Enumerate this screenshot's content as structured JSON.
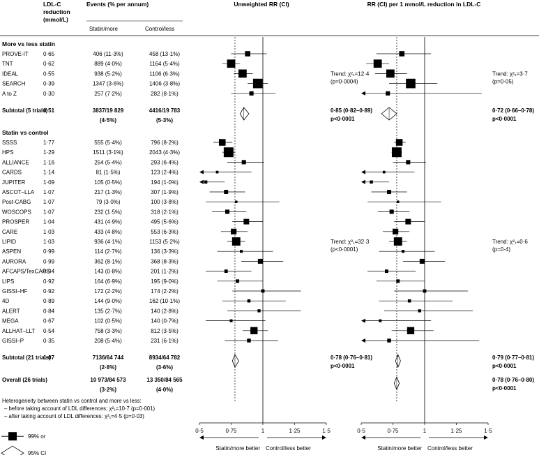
{
  "chart_data": {
    "type": "forest",
    "headers": {
      "ldl": "LDL-C reduction (mmol/L)",
      "events": "Events (% per annum)",
      "statin": "Statin/more",
      "control": "Control/less",
      "panel1": "Unweighted RR (CI)",
      "panel2": "RR (CI) per 1 mmol/L reduction in LDL-C"
    },
    "groups": [
      {
        "title": "More vs less statin",
        "trials": [
          {
            "name": "PROVE-IT",
            "ldl": "0·65",
            "statin": "406 (11·3%)",
            "control": "458 (13·1%)",
            "rr": [
              0.88,
              0.75,
              1.03
            ],
            "rr1": [
              0.82,
              0.62,
              1.05
            ]
          },
          {
            "name": "TNT",
            "ldl": "0·62",
            "statin": "889 (4·0%)",
            "control": "1164 (5·4%)",
            "rr": [
              0.75,
              0.68,
              0.82
            ],
            "rr1": [
              0.63,
              0.54,
              0.72
            ]
          },
          {
            "name": "IDEAL",
            "ldl": "0·55",
            "statin": "938 (5·2%)",
            "control": "1106 (6·3%)",
            "rr": [
              0.84,
              0.77,
              0.92
            ],
            "rr1": [
              0.73,
              0.61,
              0.86
            ]
          },
          {
            "name": "SEARCH",
            "ldl": "0·39",
            "statin": "1347 (3·6%)",
            "control": "1406 (3·8%)",
            "rr": [
              0.96,
              0.88,
              1.04
            ],
            "rr1": [
              0.89,
              0.72,
              1.1
            ]
          },
          {
            "name": "A to Z",
            "ldl": "0·30",
            "statin": "257 (7·2%)",
            "control": "282 (8·1%)",
            "rr": [
              0.91,
              0.75,
              1.1
            ],
            "rr1": [
              0.71,
              0.35,
              1.45
            ]
          }
        ],
        "trend1": [
          "Trend: χ²₁=12·4",
          "(p=0·0004)"
        ],
        "trend2": [
          "Trend: χ²₁=3·7",
          "(p=0·05)"
        ],
        "subtotal": {
          "name": "Subtotal (5 trials)",
          "ldl": "0·51",
          "statin": [
            "3837/19 829",
            "(4·5%)"
          ],
          "control": [
            "4416/19 783",
            "(5·3%)"
          ],
          "rr": [
            0.85,
            0.82,
            0.89
          ],
          "rr_text": [
            "0·85 (0·82–0·89)",
            "p<0·0001"
          ],
          "rr1": [
            0.72,
            0.66,
            0.78
          ],
          "rr1_text": [
            "0·72 (0·66–0·78)",
            "p<0·0001"
          ]
        }
      },
      {
        "title": "Statin vs control",
        "trials": [
          {
            "name": "SSSS",
            "ldl": "1·77",
            "statin": "555 (5·4%)",
            "control": "796 (8·2%)",
            "rr": [
              0.68,
              0.61,
              0.76
            ],
            "rr1": [
              0.8,
              0.76,
              0.85
            ]
          },
          {
            "name": "HPS",
            "ldl": "1·29",
            "statin": "1511 (3·1%)",
            "control": "2043 (4·3%)",
            "rr": [
              0.73,
              0.68,
              0.78
            ],
            "rr1": [
              0.78,
              0.74,
              0.82
            ]
          },
          {
            "name": "ALLIANCE",
            "ldl": "1·16",
            "statin": "254 (5·4%)",
            "control": "293 (6·4%)",
            "rr": [
              0.85,
              0.72,
              1.01
            ],
            "rr1": [
              0.87,
              0.75,
              1.01
            ]
          },
          {
            "name": "CARDS",
            "ldl": "1·14",
            "statin": "81 (1·5%)",
            "control": "123 (2·4%)",
            "rr": [
              0.64,
              0.45,
              0.91
            ],
            "rr1": [
              0.68,
              0.45,
              0.92
            ]
          },
          {
            "name": "JUPITER",
            "ldl": "1·09",
            "statin": "105 (0·5%)",
            "control": "194 (1·0%)",
            "rr": [
              0.55,
              0.45,
              0.7
            ],
            "rr1": [
              0.58,
              0.45,
              0.72
            ]
          },
          {
            "name": "ASCOT–LLA",
            "ldl": "1·07",
            "statin": "217 (1·3%)",
            "control": "307 (1·9%)",
            "rr": [
              0.71,
              0.58,
              0.86
            ],
            "rr1": [
              0.72,
              0.58,
              0.86
            ]
          },
          {
            "name": "Post-CABG",
            "ldl": "1·07",
            "statin": "79 (3·0%)",
            "control": "100 (3·8%)",
            "rr": [
              0.79,
              0.55,
              1.13
            ],
            "rr1": [
              0.79,
              0.55,
              1.13
            ]
          },
          {
            "name": "WOSCOPS",
            "ldl": "1·07",
            "statin": "232 (1·5%)",
            "control": "318 (2·1%)",
            "rr": [
              0.72,
              0.6,
              0.87
            ],
            "rr1": [
              0.74,
              0.63,
              0.88
            ]
          },
          {
            "name": "PROSPER",
            "ldl": "1·04",
            "statin": "431 (4·9%)",
            "control": "495 (5·6%)",
            "rr": [
              0.87,
              0.76,
              1.0
            ],
            "rr1": [
              0.87,
              0.76,
              1.0
            ]
          },
          {
            "name": "CARE",
            "ldl": "1·03",
            "statin": "433 (4·8%)",
            "control": "553 (6·3%)",
            "rr": [
              0.77,
              0.67,
              0.88
            ],
            "rr1": [
              0.77,
              0.67,
              0.88
            ]
          },
          {
            "name": "LIPID",
            "ldl": "1·03",
            "statin": "936 (4·1%)",
            "control": "1153 (5·2%)",
            "rr": [
              0.79,
              0.72,
              0.86
            ],
            "rr1": [
              0.79,
              0.72,
              0.86
            ]
          },
          {
            "name": "ASPEN",
            "ldl": "0·99",
            "statin": "114 (2·7%)",
            "control": "136 (3·3%)",
            "rr": [
              0.83,
              0.64,
              1.08
            ],
            "rr1": [
              0.83,
              0.64,
              1.08
            ]
          },
          {
            "name": "AURORA",
            "ldl": "0·99",
            "statin": "362 (8·1%)",
            "control": "368 (8·3%)",
            "rr": [
              0.98,
              0.83,
              1.16
            ],
            "rr1": [
              0.98,
              0.83,
              1.16
            ]
          },
          {
            "name": "AFCAPS/TexCAPS",
            "ldl": "0·94",
            "statin": "143 (0·8%)",
            "control": "201 (1·2%)",
            "rr": [
              0.71,
              0.55,
              0.91
            ],
            "rr1": [
              0.7,
              0.55,
              0.93
            ]
          },
          {
            "name": "LIPS",
            "ldl": "0·92",
            "statin": "164 (6·9%)",
            "control": "195 (9·0%)",
            "rr": [
              0.8,
              0.64,
              1.0
            ],
            "rr1": [
              0.79,
              0.62,
              1.0
            ]
          },
          {
            "name": "GISSI–HF",
            "ldl": "0·92",
            "statin": "172 (2·2%)",
            "control": "174 (2·2%)",
            "rr": [
              1.0,
              0.76,
              1.3
            ],
            "rr1": [
              1.0,
              0.76,
              1.34
            ]
          },
          {
            "name": "4D",
            "ldl": "0·89",
            "statin": "144 (9·0%)",
            "control": "162 (10·1%)",
            "rr": [
              0.89,
              0.68,
              1.18
            ],
            "rr1": [
              0.88,
              0.64,
              1.22
            ]
          },
          {
            "name": "ALERT",
            "ldl": "0·84",
            "statin": "135 (2·7%)",
            "control": "140 (2·8%)",
            "rr": [
              0.97,
              0.72,
              1.3
            ],
            "rr1": [
              0.96,
              0.68,
              1.38
            ]
          },
          {
            "name": "MEGA",
            "ldl": "0·67",
            "statin": "102 (0·5%)",
            "control": "140 (0·7%)",
            "rr": [
              0.75,
              0.55,
              1.02
            ],
            "rr1": [
              0.65,
              0.44,
              1.05
            ]
          },
          {
            "name": "ALLHAT–LLT",
            "ldl": "0·54",
            "statin": "758 (3·3%)",
            "control": "812 (3·5%)",
            "rr": [
              0.93,
              0.84,
              1.04
            ],
            "rr1": [
              0.89,
              0.74,
              1.07
            ]
          },
          {
            "name": "GISSI–P",
            "ldl": "0·35",
            "statin": "208 (5·4%)",
            "control": "231 (6·1%)",
            "rr": [
              0.89,
              0.7,
              1.12
            ],
            "rr1": [
              0.72,
              0.36,
              1.43
            ]
          }
        ],
        "trend1": [
          "Trend: χ²₁=32·3",
          "(p<0·0001)"
        ],
        "trend2": [
          "Trend: χ²₁=0·6",
          "(p=0·4)"
        ],
        "subtotal": {
          "name": "Subtotal (21 trials)",
          "ldl": "1·07",
          "statin": [
            "7136/64 744",
            "(2·8%)"
          ],
          "control": [
            "8934/64 782",
            "(3·6%)"
          ],
          "rr": [
            0.78,
            0.76,
            0.81
          ],
          "rr_text": [
            "0·78 (0·76–0·81)",
            "p<0·0001"
          ],
          "rr1": [
            0.79,
            0.77,
            0.81
          ],
          "rr1_text": [
            "0·79 (0·77–0·81)",
            "p<0·0001"
          ]
        }
      }
    ],
    "overall": {
      "name": "Overall (26 trials)",
      "statin": [
        "10 973/84 573",
        "(3·2%)"
      ],
      "control": [
        "13 350/84 565",
        "(4·0%)"
      ],
      "rr1": [
        0.78,
        0.76,
        0.8
      ],
      "rr1_text": [
        "0·78 (0·76–0·80)",
        "p<0·0001"
      ]
    },
    "heterogeneity": [
      "Heterogeneity between statin vs control and more vs less:",
      "– before taking account of LDL differences: χ²₁=10·7 (p=0·001)",
      "– after taking account of LDL differences: χ²₁=4·5 (p=0·03)"
    ],
    "legend": {
      "square": "99% or",
      "diamond": "95% CI"
    },
    "x_axis": {
      "min": 0.5,
      "max": 1.5,
      "ticks": [
        0.5,
        0.75,
        1,
        1.25,
        1.5
      ],
      "tick_labels": [
        "0·5",
        "0·75",
        "1",
        "1·25",
        "1·5"
      ]
    },
    "arrows": {
      "left": "Statin/more better",
      "right": "Control/less better"
    },
    "reference_lines": {
      "panel1_dashed": 0.78,
      "panel2_dashed": 0.78,
      "null": 1
    }
  }
}
